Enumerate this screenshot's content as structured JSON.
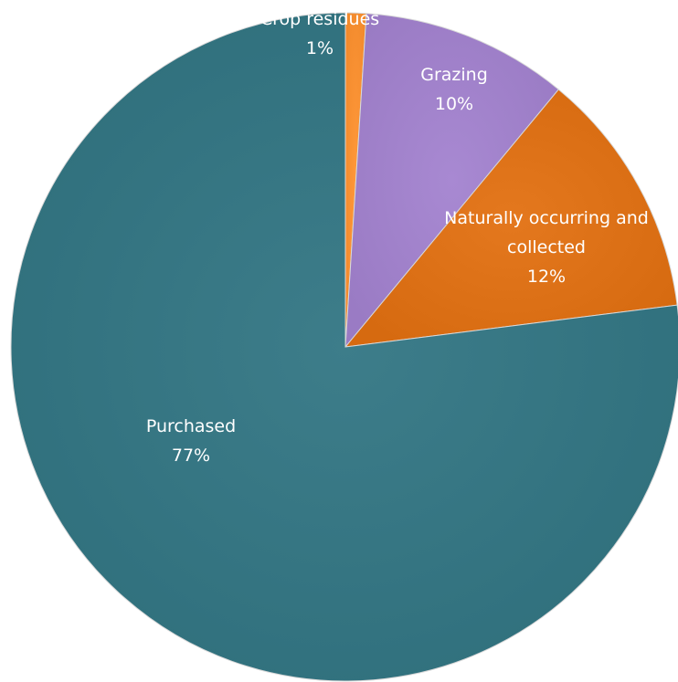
{
  "chart_data": {
    "type": "pie",
    "title": "",
    "slices": [
      {
        "label": "Crop residues",
        "value": 1,
        "value_label": "1%",
        "color": "#f28a2c"
      },
      {
        "label": "Grazing",
        "value": 10,
        "value_label": "10%",
        "color": "#9a7bc4"
      },
      {
        "label": "Naturally occurring and collected",
        "label_lines": [
          "Naturally occurring and",
          "collected"
        ],
        "value": 12,
        "value_label": "12%",
        "color": "#d66a10"
      },
      {
        "label": "Purchased",
        "value": 77,
        "value_label": "77%",
        "color": "#2f6f7c"
      }
    ],
    "start_angle_deg": 0,
    "direction": "clockwise",
    "legend": "none",
    "data_labels": "inside"
  }
}
